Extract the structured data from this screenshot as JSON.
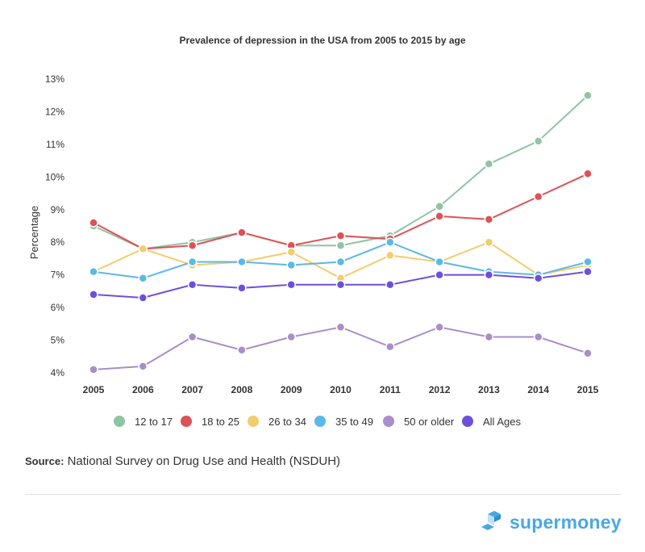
{
  "chart_data": {
    "type": "line",
    "title": "Prevalence of depression in the USA from 2005 to 2015 by age",
    "ylabel": "Percentage",
    "xlabel": "",
    "x": [
      "2005",
      "2006",
      "2007",
      "2008",
      "2009",
      "2010",
      "2011",
      "2012",
      "2013",
      "2014",
      "2015"
    ],
    "ylim": [
      4,
      13
    ],
    "yticks": [
      "4%",
      "5%",
      "6%",
      "7%",
      "8%",
      "9%",
      "10%",
      "11%",
      "12%",
      "13%"
    ],
    "grid": false,
    "legend": "bottom",
    "series": [
      {
        "name": "12 to 17",
        "color": "#8fc4a4",
        "values": [
          8.5,
          7.8,
          8.0,
          8.3,
          7.9,
          7.9,
          8.2,
          9.1,
          10.4,
          11.1,
          12.5
        ]
      },
      {
        "name": "18 to 25",
        "color": "#dd5257",
        "values": [
          8.6,
          7.8,
          7.9,
          8.3,
          7.9,
          8.2,
          8.1,
          8.8,
          8.7,
          9.4,
          10.1
        ]
      },
      {
        "name": "26 to 34",
        "color": "#f2cd6d",
        "values": [
          7.1,
          7.8,
          7.3,
          7.4,
          7.7,
          6.9,
          7.6,
          7.4,
          8.0,
          7.0,
          7.3
        ]
      },
      {
        "name": "35 to 49",
        "color": "#5cb8e6",
        "values": [
          7.1,
          6.9,
          7.4,
          7.4,
          7.3,
          7.4,
          8.0,
          7.4,
          7.1,
          7.0,
          7.4
        ]
      },
      {
        "name": "50 or older",
        "color": "#a98ec9",
        "values": [
          4.1,
          4.2,
          5.1,
          4.7,
          5.1,
          5.4,
          4.8,
          5.4,
          5.1,
          5.1,
          4.6
        ]
      },
      {
        "name": "All Ages",
        "color": "#6e4fdc",
        "values": [
          6.4,
          6.3,
          6.7,
          6.6,
          6.7,
          6.7,
          6.7,
          7.0,
          7.0,
          6.9,
          7.1
        ]
      }
    ]
  },
  "footer": {
    "source_label": "Source:",
    "source_text": " National Survey on Drug Use and Health (NSDUH)",
    "logo_text": "supermoney"
  }
}
